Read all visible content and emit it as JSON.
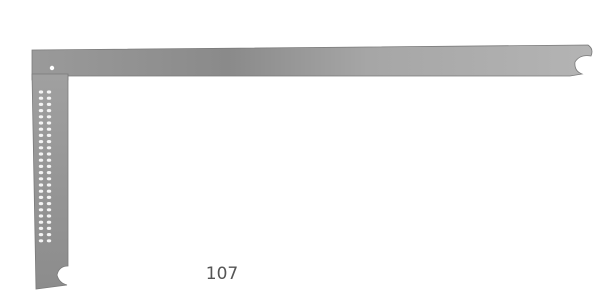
{
  "caption": "107"
}
